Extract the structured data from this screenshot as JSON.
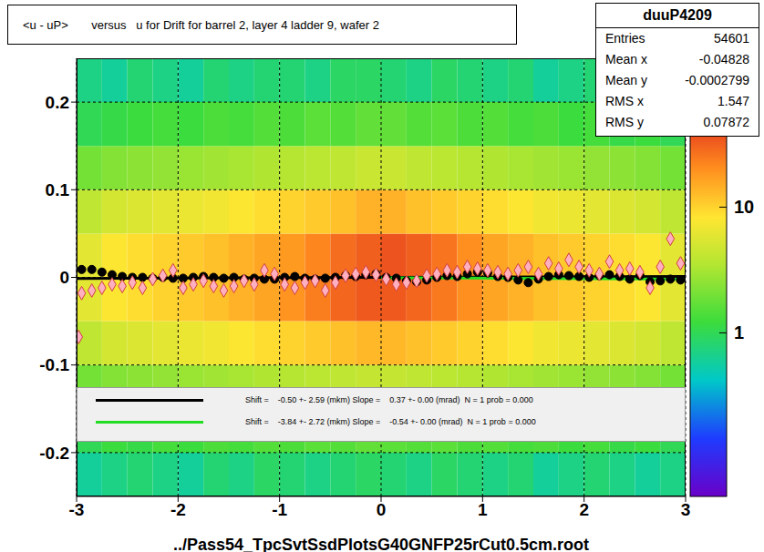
{
  "chart_data": {
    "type": "scatter",
    "title": "<u - uP>       versus   u for Drift for barrel 2, layer 4 ladder 9, wafer 2",
    "x_label": "../Pass54_TpcSvtSsdPlotsG40GNFP25rCut0.5cm.root",
    "xlim": [
      -3,
      3
    ],
    "xticks": [
      -3,
      -2,
      -1,
      0,
      1,
      2,
      3
    ],
    "ylim": [
      -0.25,
      0.25
    ],
    "yticks": [
      -0.2,
      -0.1,
      0,
      0.1,
      0.2
    ],
    "grid": true,
    "series": [
      {
        "color": "#000000",
        "marker": "circle",
        "x": [
          -2.95,
          -2.85,
          -2.75,
          -2.65,
          -2.55,
          -2.45,
          -2.35,
          -2.25,
          -2.15,
          -2.05,
          -1.95,
          -1.85,
          -1.75,
          -1.65,
          -1.55,
          -1.45,
          -1.35,
          -1.25,
          -1.15,
          -1.05,
          -0.95,
          -0.85,
          -0.75,
          -0.65,
          -0.55,
          -0.45,
          -0.35,
          -0.25,
          -0.15,
          -0.05,
          0.05,
          0.15,
          0.25,
          0.35,
          0.45,
          0.55,
          0.65,
          0.75,
          0.85,
          0.95,
          1.05,
          1.15,
          1.25,
          1.35,
          1.45,
          1.55,
          1.65,
          1.75,
          1.85,
          1.95,
          2.05,
          2.15,
          2.25,
          2.35,
          2.45,
          2.55,
          2.65,
          2.75,
          2.85,
          2.95
        ],
        "values": [
          0.009,
          0.009,
          0.006,
          0.003,
          0.001,
          0,
          0,
          -0.001,
          0,
          -0.001,
          -0.001,
          0,
          0.001,
          0,
          -0.001,
          0,
          -0.002,
          -0.001,
          -0.002,
          -0.002,
          0,
          0.001,
          -0.001,
          -0.002,
          -0.001,
          0,
          0.002,
          0.001,
          0.003,
          0.004,
          0,
          -0.001,
          -0.004,
          -0.005,
          -0.003,
          0,
          0.002,
          0.001,
          0.004,
          0.006,
          0.005,
          0.001,
          0,
          -0.003,
          -0.006,
          -0.002,
          0.001,
          0.003,
          0.002,
          0.001,
          0,
          0.002,
          0.003,
          0.001,
          -0.002,
          0.002,
          -0.005,
          -0.004,
          -0.002,
          -0.003
        ]
      },
      {
        "color": "#ffb0c0",
        "marker": "diamond",
        "x": [
          -2.98,
          -2.95,
          -2.85,
          -2.75,
          -2.65,
          -2.55,
          -2.45,
          -2.35,
          -2.25,
          -2.15,
          -2.05,
          -1.95,
          -1.85,
          -1.75,
          -1.65,
          -1.55,
          -1.45,
          -1.35,
          -1.25,
          -1.15,
          -1.05,
          -0.95,
          -0.85,
          -0.75,
          -0.65,
          -0.55,
          -0.45,
          -0.35,
          -0.25,
          -0.15,
          -0.05,
          0.05,
          0.15,
          0.25,
          0.35,
          0.45,
          0.55,
          0.65,
          0.75,
          0.85,
          0.95,
          1.05,
          1.15,
          1.25,
          1.35,
          1.45,
          1.55,
          1.65,
          1.75,
          1.85,
          1.95,
          2.05,
          2.15,
          2.25,
          2.35,
          2.45,
          2.55,
          2.65,
          2.75,
          2.85,
          2.95
        ],
        "values": [
          -0.068,
          -0.018,
          -0.015,
          -0.012,
          -0.008,
          -0.01,
          -0.006,
          -0.012,
          -0.002,
          0.002,
          0.008,
          -0.012,
          -0.008,
          -0.004,
          -0.01,
          -0.015,
          -0.01,
          -0.004,
          -0.008,
          0.008,
          0.004,
          -0.008,
          -0.012,
          -0.006,
          -0.004,
          -0.015,
          -0.006,
          0.002,
          0.004,
          0.006,
          0.003,
          -0.002,
          -0.008,
          -0.006,
          -0.004,
          0.002,
          0.004,
          0.008,
          0.006,
          0.012,
          0.01,
          0.008,
          0.006,
          0.004,
          0.008,
          0.012,
          0.004,
          0.016,
          0.01,
          0.02,
          0.012,
          0.008,
          0.004,
          0.018,
          0.008,
          0.01,
          0.006,
          -0.012,
          0.012,
          0.044,
          0.016
        ]
      }
    ],
    "fits": [
      {
        "label": "Shift =    -0.50 +- 2.59 (mkm) Slope =    0.37 +- 0.00 (mrad)  N = 1 prob = 0.000",
        "color": "#000000",
        "x": [
          -3,
          3
        ],
        "values": [
          -0.0012,
          0.001
        ]
      },
      {
        "label": "Shift =    -3.84 +- 2.72 (mkm) Slope =    -0.54 +- 0.00 (mrad)  N = 1 prob = 0.000",
        "color": "#22dd22",
        "x": [
          0,
          3
        ],
        "values": [
          -0.0004,
          -0.002
        ]
      }
    ],
    "stats": {
      "title": "duuP4209",
      "rows": [
        [
          "Entries",
          54601
        ],
        [
          "Mean x",
          -0.04828
        ],
        [
          "Mean y",
          -0.0002799
        ],
        [
          "RMS x",
          1.547
        ],
        [
          "RMS y",
          0.07872
        ]
      ]
    },
    "heatmap": {
      "xbins": [
        -3,
        -2.75,
        -2.5,
        -2.25,
        -2,
        -1.75,
        -1.5,
        -1.25,
        -1,
        -0.75,
        -0.5,
        -0.25,
        0,
        0.25,
        0.5,
        0.75,
        1,
        1.25,
        1.5,
        1.75,
        2,
        2.25,
        2.5,
        2.75,
        3
      ],
      "ybins": [
        -0.25,
        -0.2,
        -0.15,
        -0.1,
        -0.05,
        0,
        0.05,
        0.1,
        0.15,
        0.2,
        0.25
      ],
      "counts": [
        [
          0.6,
          0.7,
          0.8,
          0.7,
          0.6,
          0.8,
          0.7,
          0.9,
          0.8,
          0.7,
          0.8,
          0.9,
          0.8,
          0.7,
          0.9,
          0.8,
          0.7,
          0.8,
          0.6,
          0.7,
          0.8,
          0.7,
          0.6,
          0.7
        ],
        [
          1,
          1.2,
          1.1,
          1.3,
          1.2,
          1.4,
          1.3,
          1.5,
          1.4,
          1.6,
          1.5,
          1.7,
          1.6,
          1.5,
          1.6,
          1.4,
          1.5,
          1.3,
          1.4,
          1.2,
          1.3,
          1.1,
          1.2,
          1
        ],
        [
          2,
          2.3,
          2.5,
          2.6,
          2.8,
          3,
          3.2,
          3.4,
          3.6,
          3.8,
          4,
          4.2,
          4.2,
          4,
          3.8,
          3.6,
          3.4,
          3.2,
          3,
          2.8,
          2.6,
          2.5,
          2.3,
          2
        ],
        [
          4,
          5,
          5.5,
          6,
          6.5,
          7,
          8,
          9,
          10,
          11,
          12,
          13,
          13,
          12,
          11,
          10,
          9,
          8,
          7,
          6.5,
          6,
          5.5,
          5,
          4
        ],
        [
          6,
          8,
          9,
          10,
          11,
          12,
          14,
          16,
          19,
          24,
          30,
          34,
          34,
          30,
          25,
          20,
          16,
          14,
          12,
          11,
          10,
          9,
          8,
          6
        ],
        [
          6,
          8,
          9,
          10,
          11,
          12,
          14,
          16,
          18,
          22,
          28,
          32,
          36,
          32,
          26,
          20,
          16,
          14,
          12,
          11,
          10,
          9,
          8,
          6
        ],
        [
          4,
          5,
          5.5,
          6,
          6.5,
          7,
          8,
          9,
          10,
          11,
          12,
          14,
          14,
          12,
          11,
          10,
          9,
          8,
          7,
          6.5,
          6,
          5.5,
          5,
          4
        ],
        [
          2,
          2.3,
          2.5,
          2.6,
          2.8,
          3,
          3.2,
          3.4,
          3.6,
          3.8,
          4,
          4.4,
          4.4,
          4,
          3.8,
          3.6,
          3.4,
          3.2,
          3,
          2.8,
          2.6,
          2.5,
          2.3,
          2
        ],
        [
          1,
          1.1,
          1.2,
          1.3,
          1.2,
          1.4,
          1.3,
          1.5,
          1.4,
          1.6,
          1.5,
          1.7,
          1.7,
          1.5,
          1.6,
          1.4,
          1.5,
          1.3,
          1.4,
          1.2,
          1.3,
          1.1,
          1.2,
          1
        ],
        [
          0.7,
          0.6,
          0.8,
          0.7,
          0.6,
          0.8,
          0.7,
          0.8,
          0.8,
          0.7,
          0.9,
          0.9,
          0.8,
          0.7,
          0.9,
          0.8,
          0.7,
          0.8,
          0.6,
          0.7,
          0.8,
          0.7,
          0.6,
          0.7
        ]
      ]
    },
    "colorbar": {
      "zlim": [
        0.05,
        60
      ],
      "zticks": [
        1,
        10
      ]
    }
  }
}
